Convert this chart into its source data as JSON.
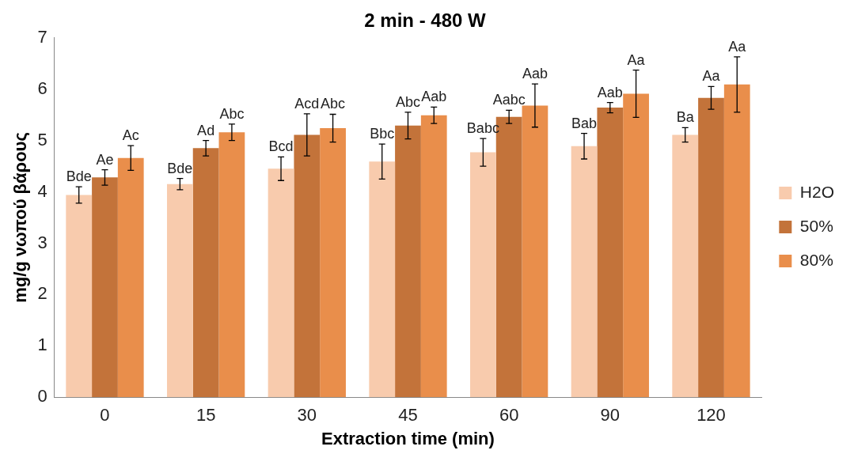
{
  "chart_data": {
    "type": "bar",
    "title": "2 min - 480 W",
    "xlabel": "Extraction time (min)",
    "ylabel": "mg/g νωπού βάρους",
    "categories": [
      "0",
      "15",
      "30",
      "45",
      "60",
      "90",
      "120"
    ],
    "series": [
      {
        "name": "H2O",
        "color": "#f8cbad",
        "values": [
          3.94,
          4.15,
          4.45,
          4.59,
          4.77,
          4.89,
          5.11
        ],
        "errors": [
          0.16,
          0.11,
          0.23,
          0.34,
          0.27,
          0.25,
          0.14
        ],
        "value_labels": [
          "Bde",
          "Bde",
          "Bcd",
          "Bbc",
          "Babc",
          "Bab",
          "Ba"
        ]
      },
      {
        "name": "50%",
        "color": "#c3733a",
        "values": [
          4.28,
          4.85,
          5.11,
          5.29,
          5.46,
          5.64,
          5.83
        ],
        "errors": [
          0.15,
          0.15,
          0.41,
          0.26,
          0.13,
          0.1,
          0.22
        ],
        "value_labels": [
          "Ae",
          "Ad",
          "Acd",
          "Abc",
          "Aabc",
          "Aab",
          "Aa"
        ]
      },
      {
        "name": "80%",
        "color": "#e98e4b",
        "values": [
          4.66,
          5.16,
          5.24,
          5.49,
          5.68,
          5.91,
          6.09
        ],
        "errors": [
          0.24,
          0.16,
          0.27,
          0.16,
          0.42,
          0.46,
          0.54
        ],
        "value_labels": [
          "Ac",
          "Abc",
          "Abc",
          "Aab",
          "Aab",
          "Aa",
          "Aa"
        ]
      }
    ],
    "ylim": [
      0,
      7
    ],
    "yticks": [
      0,
      1,
      2,
      3,
      4,
      5,
      6,
      7
    ],
    "grid": false,
    "legend": "right"
  }
}
